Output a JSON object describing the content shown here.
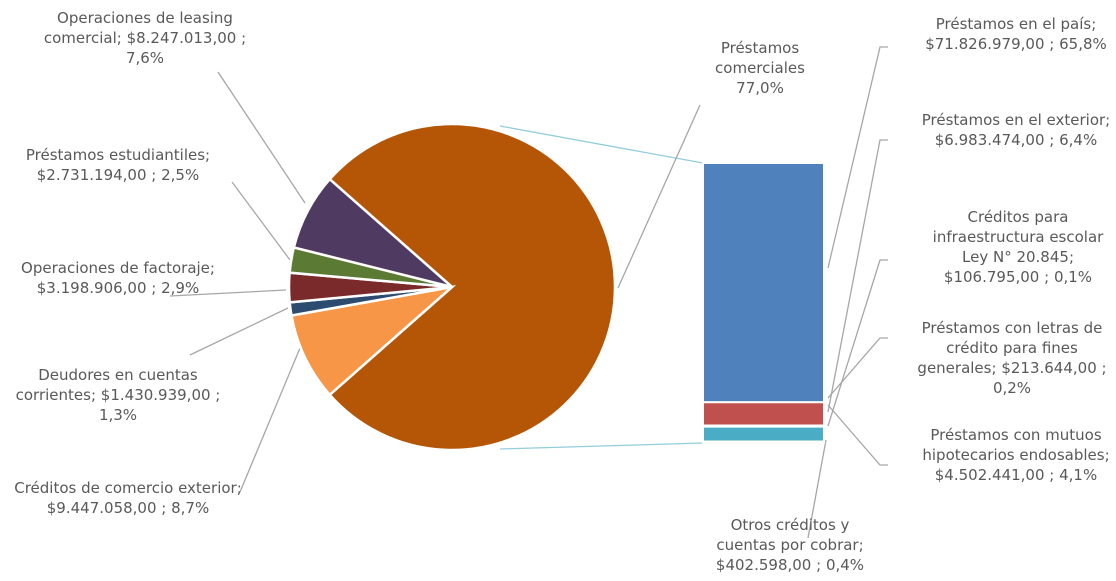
{
  "chart_data": {
    "type": "pie-of-bar",
    "pie": {
      "categories": [
        "Préstamos comerciales",
        "Créditos de comercio exterior;",
        "Deudores en cuentas corrientes;",
        "Operaciones de factoraje;",
        "Préstamos estudiantiles;",
        "Operaciones de leasing comercial;"
      ],
      "amounts": [
        null,
        9447058,
        1430939,
        3198906,
        2731194,
        8247013
      ],
      "amount_labels": [
        null,
        "$9.447.058,00 ;",
        "$1.430.939,00 ;",
        "$3.198.906,00 ;",
        "$2.731.194,00 ;",
        "$8.247.013,00 ;"
      ],
      "values": [
        77.0,
        8.7,
        1.3,
        2.9,
        2.5,
        7.6
      ],
      "value_labels": [
        "77,0%",
        "8,7%",
        "1,3%",
        "2,9%",
        "2,5%",
        "7,6%"
      ],
      "colors": [
        "#b45606",
        "#f79646",
        "#2d4a6f",
        "#7a2a2a",
        "#5b7a34",
        "#4f3a62"
      ]
    },
    "bar": {
      "categories": [
        "Préstamos en el país;",
        "Préstamos en el exterior;",
        "Créditos para infraestructura escolar Ley N° 20.845;",
        "Préstamos con letras de crédito para fines generales;",
        "Préstamos con mutuos hipotecarios endosables;",
        "Otros créditos y cuentas por cobrar;"
      ],
      "amounts": [
        71826979,
        6983474,
        106795,
        213644,
        4502441,
        402598
      ],
      "amount_labels": [
        "$71.826.979,00 ;",
        "$6.983.474,00 ;",
        "$106.795,00 ;",
        "$213.644,00 ;",
        "$4.502.441,00 ;",
        "$402.598,00 ;"
      ],
      "values": [
        65.8,
        6.4,
        0.1,
        0.2,
        4.1,
        0.4
      ],
      "value_labels": [
        "65,8%",
        "6,4%",
        "0,1%",
        "0,2%",
        "4,1%",
        "0,4%"
      ],
      "colors": [
        "#4f81bd",
        "#c0504d",
        "#9bbb59",
        "#8064a2",
        "#4bacc6",
        "#f79646"
      ]
    }
  }
}
